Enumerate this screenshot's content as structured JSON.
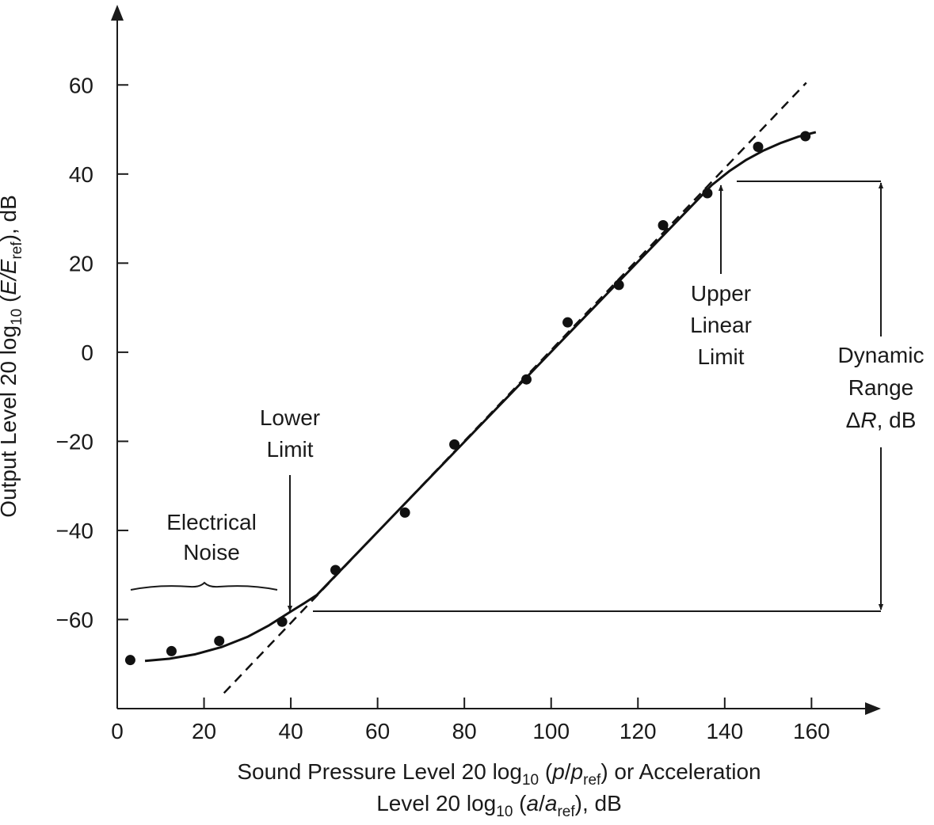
{
  "chart_data": {
    "type": "scatter",
    "xlabel": [
      [
        "Sound Pressure Level 20 log",
        "10",
        " (",
        "p",
        "/",
        "p",
        "ref",
        ") or Acceleration"
      ],
      [
        "Level 20 log",
        "10",
        " (",
        "a",
        "/",
        "a",
        "ref",
        "), dB"
      ]
    ],
    "ylabel": [
      "Output Level 20 log",
      "10",
      " (",
      "E",
      "/",
      "E",
      "ref",
      "), dB"
    ],
    "xlim": [
      0,
      176
    ],
    "ylim": [
      -80,
      78
    ],
    "xticks": [
      0,
      20,
      40,
      60,
      80,
      100,
      120,
      140,
      160
    ],
    "yticks": [
      {
        "value": -60,
        "label": "−60"
      },
      {
        "value": -40,
        "label": "−40"
      },
      {
        "value": -20,
        "label": "−20"
      },
      0,
      20,
      40,
      60
    ],
    "series": [
      {
        "type": "scatter",
        "color": "#111111",
        "x": [
          3,
          12.5,
          23.5,
          38,
          50.3,
          66.3,
          77.7,
          94.3,
          103.8,
          115.6,
          125.8,
          136,
          147.7,
          158.6
        ],
        "values": [
          -69.1,
          -67.1,
          -64.8,
          -60.5,
          -48.9,
          -36,
          -20.7,
          -6.1,
          6.7,
          15.1,
          28.5,
          35.7,
          46.1,
          48.5
        ]
      },
      {
        "type": "line",
        "color": "#111111",
        "x": [
          6.4,
          12,
          18,
          24,
          30,
          35,
          40,
          43,
          46,
          137,
          141,
          145,
          149,
          153,
          157,
          161
        ],
        "values": [
          -69.3,
          -68.8,
          -67.8,
          -66.2,
          -63.9,
          -61.3,
          -58.2,
          -56.4,
          -54.5,
          37.5,
          40.6,
          43.2,
          45.3,
          47,
          48.4,
          49.4
        ]
      },
      {
        "type": "line",
        "color": "#111111",
        "dashed": true,
        "x": [
          24.6,
          158.8
        ],
        "values": [
          -76.5,
          60.5
        ]
      }
    ],
    "annotations": {
      "electrical_noise": [
        "Electrical",
        "Noise"
      ],
      "lower_limit": [
        "Lower",
        "Limit"
      ],
      "upper_linear_limit": [
        "Upper",
        "Linear",
        "Limit"
      ],
      "dynamic_range": [
        "Dynamic",
        "Range",
        [
          "Δ",
          "R",
          ", dB"
        ]
      ]
    }
  }
}
